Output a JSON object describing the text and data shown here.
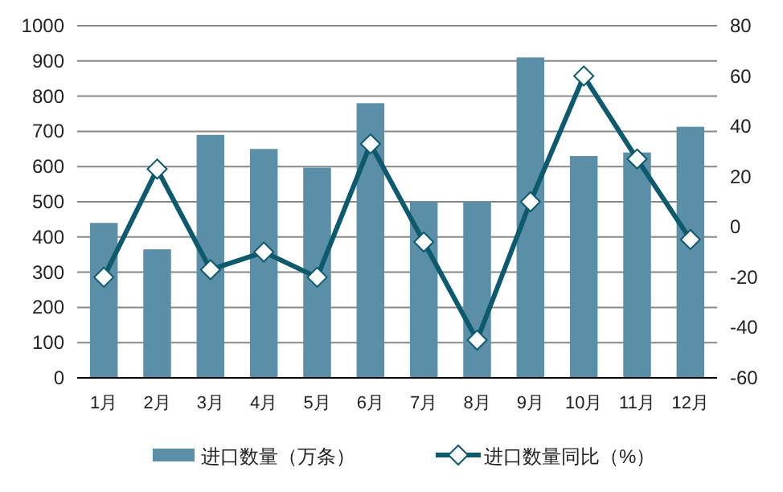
{
  "chart_data": {
    "type": "bar",
    "categories": [
      "1月",
      "2月",
      "3月",
      "4月",
      "5月",
      "6月",
      "7月",
      "8月",
      "9月",
      "10月",
      "11月",
      "12月"
    ],
    "series": [
      {
        "name": "进口数量（万条）",
        "color": "#5b8fa8",
        "values": [
          440,
          365,
          690,
          650,
          597,
          780,
          500,
          500,
          910,
          630,
          640,
          713
        ]
      },
      {
        "name": "进口数量同比（%）",
        "type": "line",
        "axis": "y2",
        "color": "#0d5a6e",
        "marker": "diamond",
        "values": [
          -20,
          23,
          -17,
          -10,
          -20,
          33,
          -6,
          -45,
          10,
          60,
          27,
          -5
        ]
      }
    ],
    "ylim": [
      0,
      1000
    ],
    "yticks": [
      0,
      100,
      200,
      300,
      400,
      500,
      600,
      700,
      800,
      900,
      1000
    ],
    "y2lim": [
      -60,
      80
    ],
    "y2ticks": [
      -60,
      -40,
      -20,
      0,
      20,
      40,
      60,
      80
    ],
    "grid": "y",
    "legend": "bottom"
  }
}
